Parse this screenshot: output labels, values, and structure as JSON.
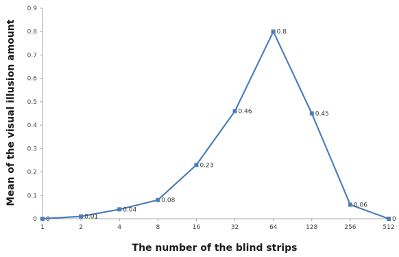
{
  "chart_data": {
    "type": "line",
    "title": "",
    "xlabel": "The number of the blind strips",
    "ylabel": "Mean of the visual illusion amount",
    "x": [
      "1",
      "2",
      "4",
      "8",
      "16",
      "32",
      "64",
      "128",
      "256",
      "512"
    ],
    "series": [
      {
        "values": [
          0,
          0.01,
          0.04,
          0.08,
          0.23,
          0.46,
          0.8,
          0.45,
          0.06,
          0
        ],
        "labels": [
          "0",
          "0.01",
          "0.04",
          "0.08",
          "0.23",
          "0.46",
          "0.8",
          "0.45",
          "0.06",
          "0"
        ],
        "color": "#4a7ebb"
      }
    ],
    "ylim": [
      0,
      0.9
    ],
    "yticks": [
      "0",
      "0.1",
      "0.2",
      "0.3",
      "0.4",
      "0.5",
      "0.6",
      "0.7",
      "0.8",
      "0.9"
    ],
    "grid": false,
    "legend": "none",
    "axis_color": "#a6a6a6"
  }
}
